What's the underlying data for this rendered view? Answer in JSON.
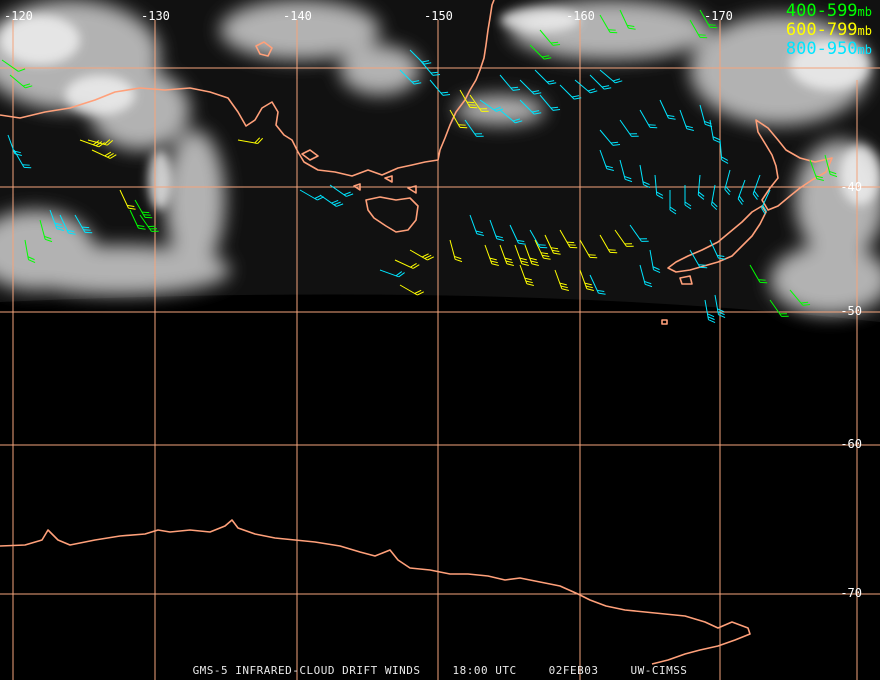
{
  "map": {
    "longitude_labels": [
      "-120",
      "-130",
      "-140",
      "-150",
      "-160",
      "-170"
    ],
    "latitude_labels": [
      "-40",
      "-50",
      "-60",
      "-70"
    ],
    "colors": {
      "background": "#000000",
      "coastline": "#ffa07a",
      "gridline": "#f4a47c",
      "cloud": "#d8d8d8"
    }
  },
  "legend": [
    {
      "range": "400-599",
      "unit": "mb",
      "color": "#00ff00"
    },
    {
      "range": "600-799",
      "unit": "mb",
      "color": "#ffff00"
    },
    {
      "range": "800-950",
      "unit": "mb",
      "color": "#00e5ff"
    }
  ],
  "footer": {
    "product": "GMS-5 INFRARED-CLOUD DRIFT WINDS",
    "time": "18:00 UTC",
    "date": "02FEB03",
    "source": "UW-CIMSS"
  }
}
